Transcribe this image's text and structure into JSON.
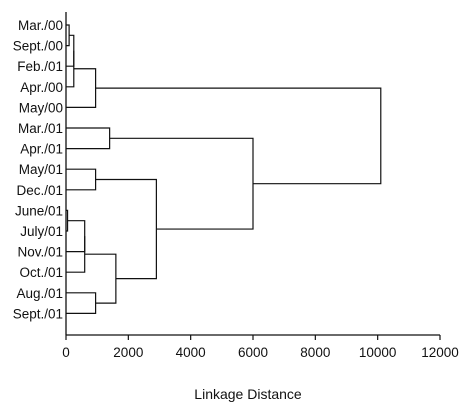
{
  "chart_data": {
    "type": "dendrogram",
    "title": "",
    "xlabel": "Linkage Distance",
    "xlim": [
      0,
      12000
    ],
    "xticks": [
      0,
      2000,
      4000,
      6000,
      8000,
      10000,
      12000
    ],
    "xtick_labels": [
      "0",
      "2000",
      "4000",
      "6000",
      "8000",
      "10000",
      "12000"
    ],
    "grid": false,
    "leaves": [
      "Mar./00",
      "Sept./00",
      "Feb./01",
      "Apr./00",
      "May/00",
      "Mar./01",
      "Apr./01",
      "May/01",
      "Dec./01",
      "June/01",
      "July/01",
      "Nov./01",
      "Oct./01",
      "Aug./01",
      "Sept./01"
    ],
    "merges": [
      {
        "a": "L0",
        "b": "L1",
        "distance": 100
      },
      {
        "a": "M0",
        "b": "L2",
        "distance": 250
      },
      {
        "a": "M1",
        "b": "L3",
        "distance": 250
      },
      {
        "a": "M2",
        "b": "L4",
        "distance": 950
      },
      {
        "a": "L5",
        "b": "L6",
        "distance": 1400
      },
      {
        "a": "L7",
        "b": "L8",
        "distance": 950
      },
      {
        "a": "L9",
        "b": "L10",
        "distance": 50
      },
      {
        "a": "M6",
        "b": "L11",
        "distance": 600
      },
      {
        "a": "M7",
        "b": "L12",
        "distance": 600
      },
      {
        "a": "L13",
        "b": "L14",
        "distance": 950
      },
      {
        "a": "M8",
        "b": "M9",
        "distance": 1600
      },
      {
        "a": "M5",
        "b": "M10",
        "distance": 2900
      },
      {
        "a": "M4",
        "b": "M11",
        "distance": 6000
      },
      {
        "a": "M3",
        "b": "M12",
        "distance": 10100
      }
    ]
  }
}
